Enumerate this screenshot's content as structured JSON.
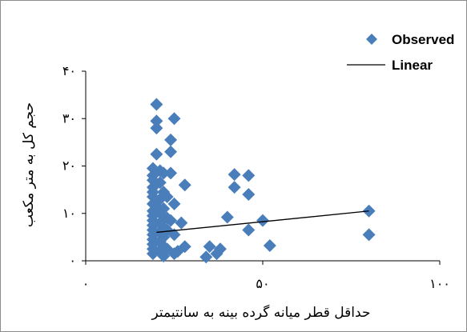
{
  "chart_data": {
    "type": "scatter",
    "xlabel": "حداقل قطر میانه گرده بینه به سانتیمتر",
    "ylabel": "حجم کل به متر مکعب",
    "xlim": [
      0,
      100
    ],
    "ylim": [
      0,
      40
    ],
    "x_ticks": [
      0,
      50,
      100
    ],
    "x_tick_labels": [
      "۰",
      "۵۰",
      "۱۰۰"
    ],
    "y_ticks": [
      0,
      10,
      20,
      30,
      40
    ],
    "y_tick_labels": [
      "۰",
      "۱۰",
      "۲۰",
      "۳۰",
      "۴۰"
    ],
    "grid": false,
    "legend_position": "top-right",
    "colors": {
      "marker": "#4a7ebb",
      "line": "#000000",
      "axis": "#000000"
    },
    "series": [
      {
        "name": "Observed",
        "marker": "diamond",
        "points": [
          [
            20,
            33
          ],
          [
            20,
            29.5
          ],
          [
            20,
            28
          ],
          [
            25,
            30
          ],
          [
            24,
            25.5
          ],
          [
            24,
            23
          ],
          [
            20,
            22.5
          ],
          [
            19,
            19.5
          ],
          [
            21,
            19
          ],
          [
            19,
            18
          ],
          [
            22,
            18.5
          ],
          [
            19,
            17
          ],
          [
            21,
            16.5
          ],
          [
            19,
            15.5
          ],
          [
            19,
            14.5
          ],
          [
            22,
            14.5
          ],
          [
            19,
            13.5
          ],
          [
            21,
            13
          ],
          [
            19,
            12
          ],
          [
            20,
            11.5
          ],
          [
            22,
            11
          ],
          [
            19,
            10.5
          ],
          [
            21,
            10
          ],
          [
            19,
            9.5
          ],
          [
            23,
            9
          ],
          [
            19,
            8.5
          ],
          [
            21,
            8
          ],
          [
            24,
            8.5
          ],
          [
            19,
            7.5
          ],
          [
            22,
            7
          ],
          [
            19,
            6.5
          ],
          [
            21,
            6
          ],
          [
            19,
            5.5
          ],
          [
            22,
            5
          ],
          [
            19,
            4.5
          ],
          [
            21,
            4
          ],
          [
            19,
            3.5
          ],
          [
            22,
            3
          ],
          [
            19,
            2.5
          ],
          [
            21,
            2
          ],
          [
            23,
            2.5
          ],
          [
            19,
            1.5
          ],
          [
            22,
            1
          ],
          [
            25,
            1.5
          ],
          [
            27,
            8
          ],
          [
            26,
            2
          ],
          [
            28,
            3
          ],
          [
            28,
            16
          ],
          [
            24,
            18.5
          ],
          [
            23,
            13.5
          ],
          [
            25,
            12
          ],
          [
            23,
            6.5
          ],
          [
            25,
            5.5
          ],
          [
            35,
            3
          ],
          [
            34,
            0.8
          ],
          [
            37,
            1.5
          ],
          [
            38,
            2.5
          ],
          [
            40,
            9.2
          ],
          [
            42,
            18.2
          ],
          [
            42,
            15.5
          ],
          [
            46,
            18
          ],
          [
            46,
            14
          ],
          [
            46,
            6.5
          ],
          [
            50,
            8.5
          ],
          [
            52,
            3.2
          ],
          [
            80,
            10.5
          ],
          [
            80,
            5.5
          ]
        ]
      },
      {
        "name": "Linear",
        "type": "line",
        "points": [
          [
            20,
            6
          ],
          [
            80,
            10.5
          ]
        ]
      }
    ]
  }
}
